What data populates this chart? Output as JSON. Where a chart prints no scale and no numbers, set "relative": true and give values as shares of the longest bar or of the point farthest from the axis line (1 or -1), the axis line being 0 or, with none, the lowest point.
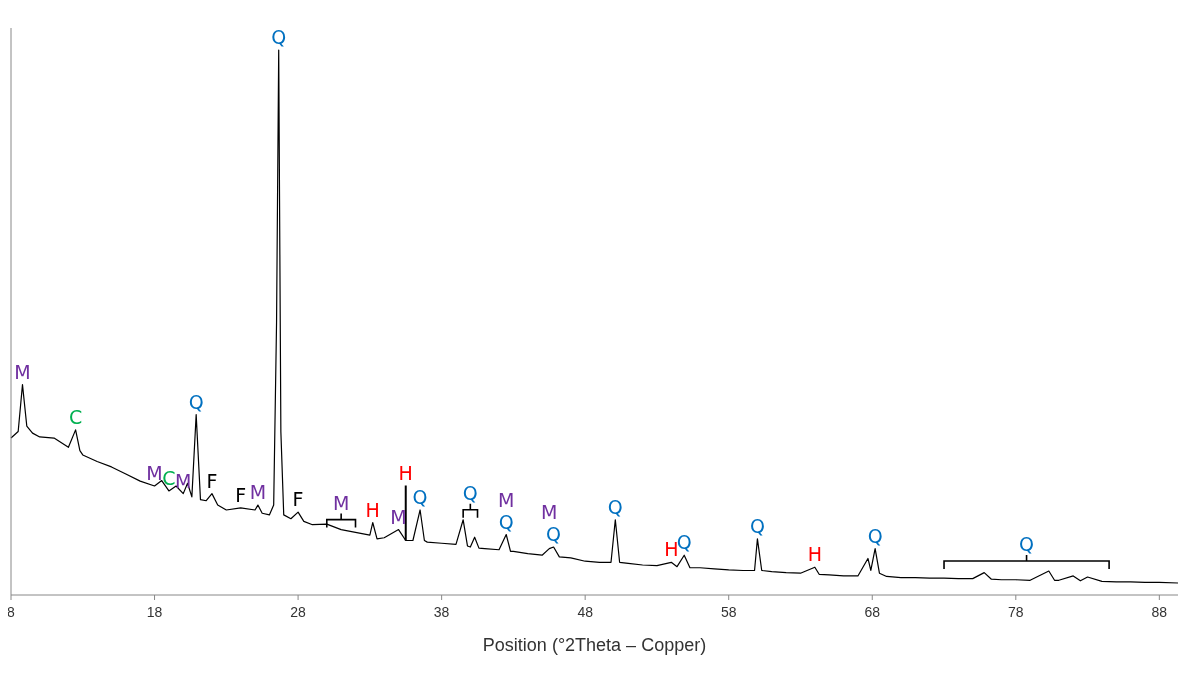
{
  "chart_data": {
    "type": "line",
    "relative": true,
    "xlabel": "Position (°2Theta – Copper)",
    "xlim": [
      8,
      89.3
    ],
    "xticks": [
      8,
      18,
      28,
      38,
      48,
      58,
      68,
      78,
      88
    ],
    "grid": false,
    "marker": "none",
    "line_style": "solid",
    "series": [
      {
        "color": "#000000",
        "x": [
          8,
          8.5,
          8.8,
          9.1,
          9.5,
          10,
          11,
          12,
          12.5,
          12.8,
          13,
          14,
          15,
          16,
          17,
          18,
          18.5,
          19,
          19.5,
          20,
          20.3,
          20.6,
          20.9,
          21.2,
          21.6,
          22,
          22.4,
          23,
          24,
          25,
          25.2,
          25.5,
          26,
          26.3,
          26.5,
          26.65,
          26.8,
          27,
          27.5,
          28,
          28.4,
          29,
          30,
          31,
          32,
          33,
          33.2,
          33.5,
          34,
          35,
          35.5,
          36,
          36.5,
          36.8,
          37,
          38,
          39,
          39.5,
          39.8,
          40,
          40.3,
          40.6,
          41,
          42,
          42.5,
          42.8,
          43,
          44,
          45,
          45.5,
          45.8,
          46.2,
          47,
          48,
          49,
          49.8,
          50.1,
          50.4,
          51,
          52,
          53,
          54,
          54.4,
          54.9,
          55.3,
          56,
          57,
          58,
          59,
          59.8,
          60,
          60.3,
          61,
          62,
          63,
          64,
          64.3,
          65,
          66,
          67,
          67.7,
          67.9,
          68.2,
          68.5,
          69,
          70,
          71,
          72,
          73,
          74,
          75,
          75.8,
          76.3,
          77,
          78,
          79,
          80.3,
          80.7,
          81,
          82,
          82.5,
          83,
          84,
          85,
          86,
          87,
          88,
          89.3
        ],
        "values": [
          0.288,
          0.3,
          0.386,
          0.31,
          0.297,
          0.29,
          0.288,
          0.271,
          0.303,
          0.265,
          0.257,
          0.245,
          0.235,
          0.222,
          0.209,
          0.2,
          0.21,
          0.191,
          0.2,
          0.186,
          0.205,
          0.18,
          0.331,
          0.175,
          0.173,
          0.186,
          0.165,
          0.156,
          0.16,
          0.156,
          0.165,
          0.15,
          0.147,
          0.165,
          0.5,
          1.0,
          0.3,
          0.147,
          0.14,
          0.152,
          0.135,
          0.129,
          0.13,
          0.12,
          0.115,
          0.11,
          0.133,
          0.103,
          0.105,
          0.12,
          0.1,
          0.1,
          0.156,
          0.1,
          0.097,
          0.095,
          0.093,
          0.138,
          0.09,
          0.088,
          0.106,
          0.086,
          0.085,
          0.083,
          0.111,
          0.08,
          0.08,
          0.076,
          0.073,
          0.085,
          0.088,
          0.07,
          0.068,
          0.062,
          0.06,
          0.06,
          0.138,
          0.06,
          0.058,
          0.055,
          0.054,
          0.06,
          0.052,
          0.073,
          0.05,
          0.05,
          0.048,
          0.046,
          0.045,
          0.045,
          0.103,
          0.045,
          0.043,
          0.041,
          0.04,
          0.051,
          0.038,
          0.037,
          0.035,
          0.035,
          0.067,
          0.045,
          0.085,
          0.04,
          0.034,
          0.032,
          0.032,
          0.031,
          0.031,
          0.03,
          0.03,
          0.041,
          0.029,
          0.028,
          0.028,
          0.027,
          0.044,
          0.027,
          0.027,
          0.035,
          0.026,
          0.033,
          0.025,
          0.024,
          0.024,
          0.023,
          0.023,
          0.022
        ]
      }
    ],
    "annotations": [
      {
        "text": "M",
        "x": 8.8,
        "y": 0.386
      },
      {
        "text": "C",
        "x": 12.5,
        "y": 0.303
      },
      {
        "text": "Q",
        "x": 20.9,
        "y": 0.331
      },
      {
        "text": "M",
        "x": 18,
        "y": 0.2
      },
      {
        "text": "C",
        "x": 19,
        "y": 0.191
      },
      {
        "text": "M",
        "x": 20,
        "y": 0.186
      },
      {
        "text": "F",
        "x": 22,
        "y": 0.186
      },
      {
        "text": "F",
        "x": 24,
        "y": 0.16
      },
      {
        "text": "M",
        "x": 25.2,
        "y": 0.165
      },
      {
        "text": "Q",
        "x": 26.65,
        "y": 1.0
      },
      {
        "text": "F",
        "x": 28,
        "y": 0.152
      },
      {
        "text": "M",
        "x": 31,
        "y": 0.12
      },
      {
        "text": "H",
        "x": 33.2,
        "y": 0.133
      },
      {
        "text": "H",
        "x": 35.5,
        "y": 0.1
      },
      {
        "text": "M",
        "x": 35,
        "y": 0.12
      },
      {
        "text": "Q",
        "x": 36.5,
        "y": 0.156
      },
      {
        "text": "Q",
        "x": 39.5,
        "y": 0.138
      },
      {
        "text": "Q",
        "x": 42.5,
        "y": 0.111
      },
      {
        "text": "M",
        "x": 42.5,
        "y": 0.111
      },
      {
        "text": "Q",
        "x": 45.8,
        "y": 0.088
      },
      {
        "text": "M",
        "x": 45.5,
        "y": 0.085
      },
      {
        "text": "Q",
        "x": 50.1,
        "y": 0.138
      },
      {
        "text": "H",
        "x": 54,
        "y": 0.06
      },
      {
        "text": "Q",
        "x": 54.9,
        "y": 0.073
      },
      {
        "text": "Q",
        "x": 60,
        "y": 0.103
      },
      {
        "text": "H",
        "x": 64,
        "y": 0.051
      },
      {
        "text": "Q",
        "x": 68.2,
        "y": 0.085
      },
      {
        "text": "Q",
        "x": 80.3,
        "y": 0.044
      }
    ]
  }
}
